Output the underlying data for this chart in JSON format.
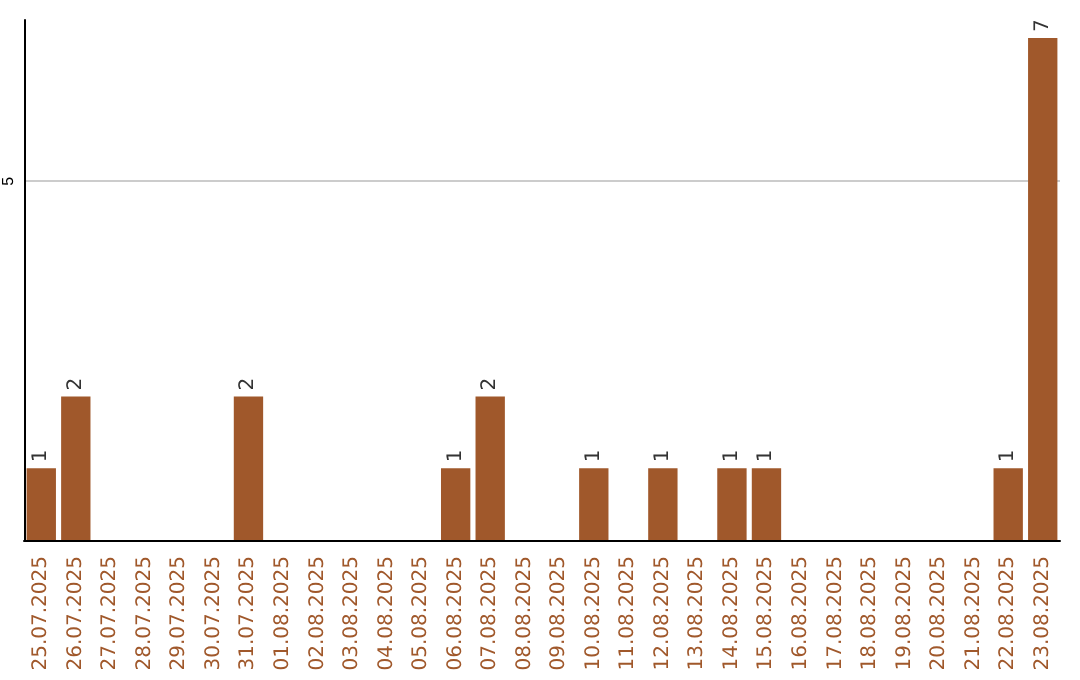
{
  "chart_data": {
    "type": "bar",
    "categories": [
      "25.07.2025",
      "26.07.2025",
      "27.07.2025",
      "28.07.2025",
      "29.07.2025",
      "30.07.2025",
      "31.07.2025",
      "01.08.2025",
      "02.08.2025",
      "03.08.2025",
      "04.08.2025",
      "05.08.2025",
      "06.08.2025",
      "07.08.2025",
      "08.08.2025",
      "09.08.2025",
      "10.08.2025",
      "11.08.2025",
      "12.08.2025",
      "13.08.2025",
      "14.08.2025",
      "15.08.2025",
      "16.08.2025",
      "17.08.2025",
      "18.08.2025",
      "19.08.2025",
      "20.08.2025",
      "21.08.2025",
      "22.08.2025",
      "23.08.2025"
    ],
    "values": [
      1,
      2,
      0,
      0,
      0,
      0,
      2,
      0,
      0,
      0,
      0,
      0,
      1,
      2,
      0,
      0,
      1,
      0,
      1,
      0,
      1,
      1,
      0,
      0,
      0,
      0,
      0,
      0,
      1,
      7
    ],
    "value_labels": [
      "1",
      "2",
      null,
      null,
      null,
      null,
      "2",
      null,
      null,
      null,
      null,
      null,
      "1",
      "2",
      null,
      null,
      "1",
      null,
      "1",
      null,
      "1",
      "1",
      null,
      null,
      null,
      null,
      null,
      null,
      "1",
      "7"
    ],
    "color": "#a0582b",
    "ylim": [
      0,
      7.25
    ],
    "yticks": [
      5
    ],
    "grid": "y"
  }
}
